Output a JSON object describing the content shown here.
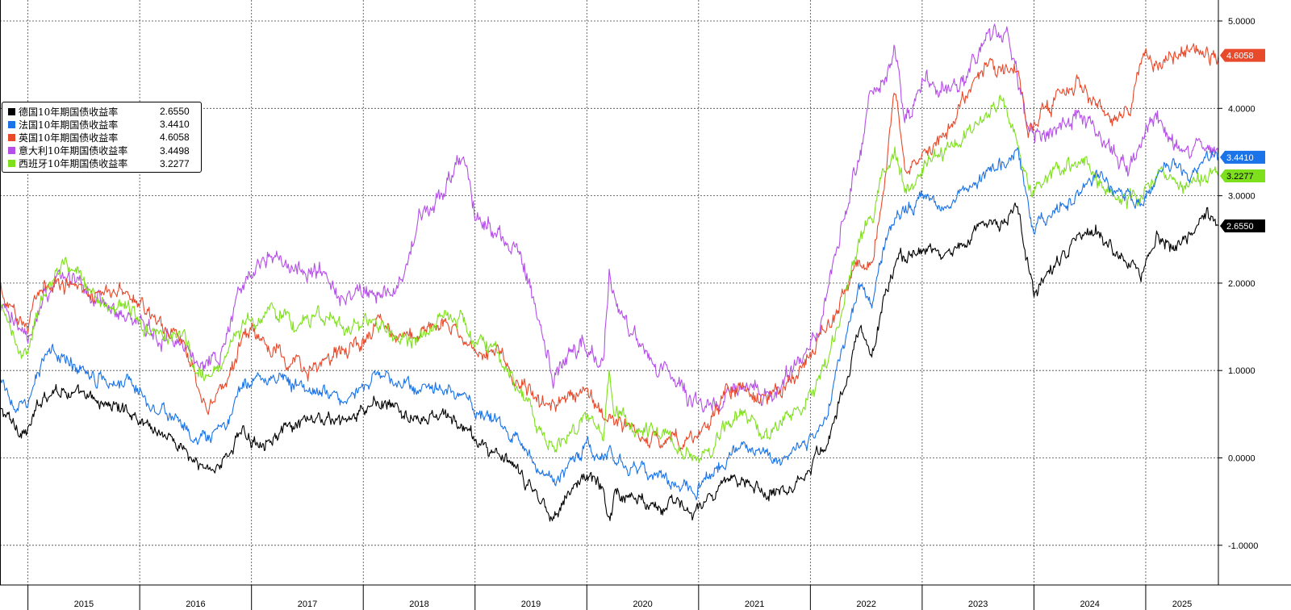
{
  "chart_data": {
    "type": "line",
    "y_axis_side": "right",
    "ylim": [
      -1.4,
      5.2
    ],
    "yticks": [
      "5.0000",
      "4.0000",
      "3.0000",
      "2.0000",
      "1.0000",
      "0.0000",
      "-1.0000"
    ],
    "ytick_values": [
      5,
      4,
      3,
      2,
      1,
      0,
      -1
    ],
    "x_range": [
      2014.75,
      2025.65
    ],
    "x_categories": [
      "2015",
      "2016",
      "2017",
      "2018",
      "2019",
      "2020",
      "2021",
      "2022",
      "2023",
      "2024",
      "2025"
    ],
    "year_boundaries": [
      2015,
      2016,
      2017,
      2018,
      2019,
      2020,
      2021,
      2022,
      2023,
      2024,
      2025
    ],
    "grid": true,
    "legend_position": "top-left",
    "series": [
      {
        "name": "德国10年期国债收益率",
        "last": "2.6550",
        "color": "#000000",
        "noise": 0.05,
        "x": [
          2014.75,
          2014.9,
          2015.0,
          2015.05,
          2015.15,
          2015.3,
          2015.45,
          2015.6,
          2015.75,
          2015.9,
          2016.05,
          2016.25,
          2016.4,
          2016.5,
          2016.6,
          2016.75,
          2016.9,
          2017.0,
          2017.2,
          2017.4,
          2017.6,
          2017.8,
          2018.0,
          2018.1,
          2018.3,
          2018.5,
          2018.7,
          2018.9,
          2019.0,
          2019.2,
          2019.4,
          2019.6,
          2019.7,
          2019.9,
          2020.0,
          2020.15,
          2020.2,
          2020.25,
          2020.4,
          2020.6,
          2020.8,
          2020.95,
          2021.1,
          2021.25,
          2021.4,
          2021.6,
          2021.7,
          2021.85,
          2022.0,
          2022.15,
          2022.3,
          2022.45,
          2022.55,
          2022.65,
          2022.75,
          2022.85,
          2023.0,
          2023.2,
          2023.4,
          2023.6,
          2023.75,
          2023.85,
          2023.95,
          2024.0,
          2024.2,
          2024.4,
          2024.55,
          2024.7,
          2024.85,
          2024.95,
          2025.0,
          2025.1,
          2025.25,
          2025.4,
          2025.55,
          2025.65
        ],
        "y": [
          0.55,
          0.35,
          0.3,
          0.45,
          0.75,
          0.8,
          0.7,
          0.65,
          0.6,
          0.55,
          0.4,
          0.25,
          0.1,
          -0.1,
          -0.12,
          -0.05,
          0.3,
          0.2,
          0.25,
          0.35,
          0.45,
          0.4,
          0.5,
          0.65,
          0.55,
          0.4,
          0.5,
          0.35,
          0.2,
          0.05,
          -0.2,
          -0.5,
          -0.65,
          -0.3,
          -0.2,
          -0.35,
          -0.7,
          -0.4,
          -0.45,
          -0.5,
          -0.55,
          -0.6,
          -0.5,
          -0.3,
          -0.2,
          -0.4,
          -0.35,
          -0.3,
          -0.1,
          0.2,
          0.8,
          1.5,
          1.1,
          1.8,
          2.2,
          2.3,
          2.4,
          2.3,
          2.5,
          2.7,
          2.7,
          2.9,
          2.2,
          1.9,
          2.2,
          2.5,
          2.6,
          2.4,
          2.3,
          2.1,
          2.2,
          2.6,
          2.4,
          2.5,
          2.8,
          2.655
        ]
      },
      {
        "name": "法国10年期国债收益率",
        "last": "3.4410",
        "color": "#1a73e8",
        "noise": 0.05,
        "x": [
          2014.75,
          2014.9,
          2015.0,
          2015.05,
          2015.15,
          2015.3,
          2015.45,
          2015.6,
          2015.75,
          2015.9,
          2016.05,
          2016.25,
          2016.4,
          2016.5,
          2016.6,
          2016.75,
          2016.9,
          2017.0,
          2017.2,
          2017.4,
          2017.6,
          2017.8,
          2018.0,
          2018.1,
          2018.3,
          2018.5,
          2018.7,
          2018.9,
          2019.0,
          2019.2,
          2019.4,
          2019.6,
          2019.7,
          2019.9,
          2020.0,
          2020.15,
          2020.2,
          2020.25,
          2020.4,
          2020.6,
          2020.8,
          2020.95,
          2021.1,
          2021.25,
          2021.4,
          2021.6,
          2021.7,
          2021.85,
          2022.0,
          2022.15,
          2022.3,
          2022.45,
          2022.55,
          2022.65,
          2022.75,
          2022.85,
          2023.0,
          2023.2,
          2023.4,
          2023.6,
          2023.75,
          2023.85,
          2023.95,
          2024.0,
          2024.2,
          2024.4,
          2024.55,
          2024.7,
          2024.85,
          2024.95,
          2025.0,
          2025.1,
          2025.25,
          2025.4,
          2025.55,
          2025.65
        ],
        "y": [
          0.85,
          0.6,
          0.55,
          0.8,
          1.2,
          1.15,
          1.05,
          0.95,
          0.9,
          0.9,
          0.7,
          0.5,
          0.35,
          0.15,
          0.2,
          0.3,
          0.75,
          0.9,
          0.95,
          0.85,
          0.75,
          0.7,
          0.8,
          0.95,
          0.85,
          0.75,
          0.8,
          0.7,
          0.6,
          0.4,
          0.15,
          -0.15,
          -0.3,
          0.0,
          0.1,
          -0.05,
          0.15,
          0.0,
          -0.1,
          -0.2,
          -0.3,
          -0.35,
          -0.2,
          0.0,
          0.15,
          0.05,
          0.0,
          0.05,
          0.2,
          0.55,
          1.3,
          2.0,
          1.7,
          2.4,
          2.7,
          2.85,
          3.0,
          2.9,
          3.1,
          3.3,
          3.4,
          3.55,
          2.9,
          2.6,
          2.9,
          3.0,
          3.3,
          3.1,
          3.0,
          2.9,
          3.0,
          3.25,
          3.35,
          3.2,
          3.4,
          3.441
        ]
      },
      {
        "name": "英国10年期国债收益率",
        "last": "4.6058",
        "color": "#e8492a",
        "noise": 0.06,
        "x": [
          2014.75,
          2014.9,
          2015.0,
          2015.05,
          2015.15,
          2015.3,
          2015.45,
          2015.6,
          2015.75,
          2015.9,
          2016.05,
          2016.25,
          2016.4,
          2016.5,
          2016.6,
          2016.75,
          2016.9,
          2017.0,
          2017.2,
          2017.4,
          2017.6,
          2017.8,
          2018.0,
          2018.1,
          2018.3,
          2018.5,
          2018.7,
          2018.9,
          2019.0,
          2019.2,
          2019.4,
          2019.6,
          2019.7,
          2019.9,
          2020.0,
          2020.15,
          2020.2,
          2020.25,
          2020.4,
          2020.6,
          2020.8,
          2020.95,
          2021.1,
          2021.25,
          2021.4,
          2021.6,
          2021.7,
          2021.85,
          2022.0,
          2022.15,
          2022.3,
          2022.45,
          2022.55,
          2022.65,
          2022.75,
          2022.85,
          2023.0,
          2023.2,
          2023.4,
          2023.6,
          2023.75,
          2023.85,
          2023.95,
          2024.0,
          2024.2,
          2024.4,
          2024.55,
          2024.7,
          2024.85,
          2024.95,
          2025.0,
          2025.1,
          2025.25,
          2025.4,
          2025.55,
          2025.65
        ],
        "y": [
          1.9,
          1.6,
          1.55,
          1.7,
          2.05,
          2.0,
          2.0,
          1.9,
          1.85,
          1.9,
          1.7,
          1.5,
          1.35,
          0.9,
          0.65,
          0.75,
          1.3,
          1.45,
          1.2,
          1.05,
          1.0,
          1.25,
          1.3,
          1.55,
          1.45,
          1.35,
          1.6,
          1.4,
          1.25,
          1.2,
          0.9,
          0.6,
          0.55,
          0.75,
          0.7,
          0.55,
          0.4,
          0.45,
          0.3,
          0.2,
          0.2,
          0.2,
          0.45,
          0.8,
          0.8,
          0.6,
          0.75,
          0.95,
          1.15,
          1.5,
          1.9,
          2.3,
          2.2,
          3.0,
          4.2,
          3.3,
          3.5,
          3.6,
          4.2,
          4.5,
          4.4,
          4.5,
          3.7,
          3.8,
          4.1,
          4.3,
          4.1,
          3.9,
          4.0,
          4.4,
          4.6,
          4.5,
          4.6,
          4.65,
          4.6,
          4.606
        ]
      },
      {
        "name": "意大利10年期国债收益率",
        "last": "3.4498",
        "color": "#b44fe8",
        "noise": 0.07,
        "x": [
          2014.75,
          2014.9,
          2015.0,
          2015.05,
          2015.15,
          2015.3,
          2015.45,
          2015.6,
          2015.75,
          2015.9,
          2016.05,
          2016.25,
          2016.4,
          2016.5,
          2016.6,
          2016.75,
          2016.9,
          2017.0,
          2017.2,
          2017.4,
          2017.6,
          2017.8,
          2018.0,
          2018.1,
          2018.3,
          2018.5,
          2018.7,
          2018.9,
          2019.0,
          2019.2,
          2019.4,
          2019.6,
          2019.7,
          2019.9,
          2020.0,
          2020.15,
          2020.2,
          2020.25,
          2020.4,
          2020.6,
          2020.8,
          2020.95,
          2021.1,
          2021.25,
          2021.4,
          2021.6,
          2021.7,
          2021.85,
          2022.0,
          2022.15,
          2022.3,
          2022.45,
          2022.55,
          2022.65,
          2022.75,
          2022.85,
          2023.0,
          2023.2,
          2023.4,
          2023.6,
          2023.75,
          2023.85,
          2023.95,
          2024.0,
          2024.2,
          2024.4,
          2024.55,
          2024.7,
          2024.85,
          2024.95,
          2025.0,
          2025.1,
          2025.25,
          2025.4,
          2025.55,
          2025.65
        ],
        "y": [
          1.8,
          1.45,
          1.4,
          1.6,
          1.85,
          2.1,
          2.0,
          1.85,
          1.7,
          1.55,
          1.45,
          1.4,
          1.3,
          1.15,
          1.1,
          1.3,
          2.0,
          2.1,
          2.3,
          2.1,
          2.15,
          1.8,
          1.95,
          2.0,
          1.8,
          2.8,
          3.0,
          3.5,
          2.8,
          2.6,
          2.4,
          1.4,
          0.9,
          1.25,
          1.3,
          1.0,
          2.2,
          1.8,
          1.4,
          1.1,
          0.8,
          0.65,
          0.55,
          0.75,
          0.9,
          0.7,
          0.7,
          1.0,
          1.2,
          1.9,
          2.8,
          3.5,
          4.2,
          4.3,
          4.6,
          3.9,
          4.3,
          4.2,
          4.4,
          4.8,
          4.9,
          4.3,
          3.8,
          3.7,
          3.8,
          3.9,
          3.8,
          3.5,
          3.3,
          3.55,
          3.8,
          3.9,
          3.6,
          3.45,
          3.6,
          3.45
        ]
      },
      {
        "name": "西班牙10年期国债收益率",
        "last": "3.2277",
        "color": "#7ee01c",
        "noise": 0.06,
        "x": [
          2014.75,
          2014.9,
          2015.0,
          2015.05,
          2015.15,
          2015.3,
          2015.45,
          2015.6,
          2015.75,
          2015.9,
          2016.05,
          2016.25,
          2016.4,
          2016.5,
          2016.6,
          2016.75,
          2016.9,
          2017.0,
          2017.2,
          2017.4,
          2017.6,
          2017.8,
          2018.0,
          2018.1,
          2018.3,
          2018.5,
          2018.7,
          2018.9,
          2019.0,
          2019.2,
          2019.4,
          2019.6,
          2019.7,
          2019.9,
          2020.0,
          2020.15,
          2020.2,
          2020.25,
          2020.4,
          2020.6,
          2020.8,
          2020.95,
          2021.1,
          2021.25,
          2021.4,
          2021.6,
          2021.7,
          2021.85,
          2022.0,
          2022.15,
          2022.3,
          2022.45,
          2022.55,
          2022.65,
          2022.75,
          2022.85,
          2023.0,
          2023.2,
          2023.4,
          2023.6,
          2023.75,
          2023.85,
          2023.95,
          2024.0,
          2024.2,
          2024.4,
          2024.55,
          2024.7,
          2024.85,
          2024.95,
          2025.0,
          2025.1,
          2025.25,
          2025.4,
          2025.55,
          2025.65
        ],
        "y": [
          1.7,
          1.3,
          1.2,
          1.5,
          1.9,
          2.2,
          2.1,
          1.9,
          1.75,
          1.7,
          1.5,
          1.45,
          1.35,
          1.05,
          0.95,
          1.1,
          1.45,
          1.6,
          1.7,
          1.5,
          1.65,
          1.45,
          1.5,
          1.6,
          1.35,
          1.4,
          1.65,
          1.55,
          1.4,
          1.15,
          0.8,
          0.25,
          0.1,
          0.35,
          0.45,
          0.3,
          1.0,
          0.5,
          0.35,
          0.3,
          0.15,
          0.05,
          0.1,
          0.35,
          0.5,
          0.3,
          0.35,
          0.55,
          0.7,
          1.1,
          1.8,
          2.5,
          2.7,
          3.3,
          3.5,
          3.1,
          3.4,
          3.5,
          3.7,
          4.0,
          4.1,
          3.6,
          3.1,
          3.1,
          3.3,
          3.35,
          3.3,
          3.0,
          2.95,
          2.9,
          3.1,
          3.3,
          3.2,
          3.1,
          3.3,
          3.2277
        ]
      }
    ]
  }
}
